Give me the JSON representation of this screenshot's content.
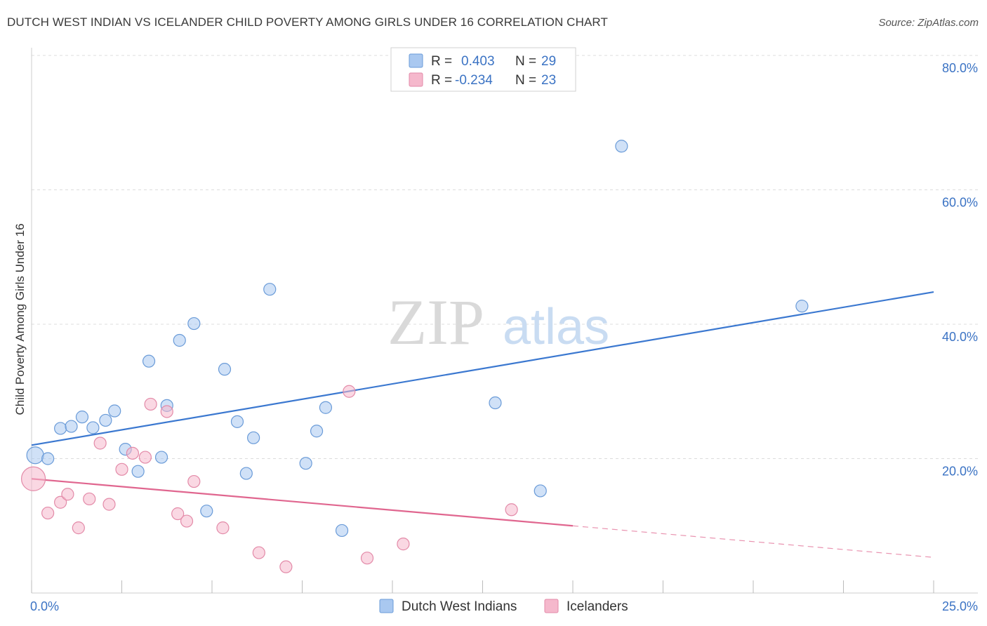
{
  "title": "DUTCH WEST INDIAN VS ICELANDER CHILD POVERTY AMONG GIRLS UNDER 16 CORRELATION CHART",
  "source": "Source: ZipAtlas.com",
  "watermark": {
    "zip": "ZIP",
    "atlas": "atlas"
  },
  "legend": {
    "rows": [
      {
        "r_label": "R =",
        "r_value": "0.403",
        "n_label": "N =",
        "n_value": "29",
        "color": "#a9c8f0"
      },
      {
        "r_label": "R =",
        "r_value": "-0.234",
        "n_label": "N =",
        "n_value": "23",
        "color": "#f5b8cc"
      }
    ]
  },
  "bottom_legend": [
    {
      "label": "Dutch West Indians",
      "color": "#a9c8f0"
    },
    {
      "label": "Icelanders",
      "color": "#f5b8cc"
    }
  ],
  "chart_data": {
    "type": "scatter",
    "ylabel": "Child Poverty Among Girls Under 16",
    "xlim": [
      0,
      25
    ],
    "ylim": [
      0,
      80
    ],
    "y_tick_labels": [
      "80.0%",
      "60.0%",
      "40.0%",
      "20.0%"
    ],
    "y_ticks": [
      80,
      60,
      40,
      20
    ],
    "x_tick_labels": [
      "0.0%",
      "25.0%"
    ],
    "x_ticks": [
      0,
      25
    ],
    "grid": true,
    "series": [
      {
        "name": "Dutch West Indians",
        "color": "#a9c8f0",
        "stroke": "#6a9bd8",
        "trend_color": "#3b78d0",
        "trend": {
          "x": [
            0,
            25
          ],
          "y": [
            22.0,
            44.8
          ]
        },
        "points": [
          [
            0.1,
            20.5
          ],
          [
            0.45,
            20.0
          ],
          [
            0.8,
            24.5
          ],
          [
            1.1,
            24.8
          ],
          [
            1.4,
            26.2
          ],
          [
            1.7,
            24.6
          ],
          [
            2.05,
            25.7
          ],
          [
            2.3,
            27.1
          ],
          [
            2.6,
            21.4
          ],
          [
            2.95,
            18.1
          ],
          [
            3.25,
            34.5
          ],
          [
            3.6,
            20.2
          ],
          [
            3.75,
            27.9
          ],
          [
            4.1,
            37.6
          ],
          [
            4.5,
            40.1
          ],
          [
            4.85,
            12.2
          ],
          [
            5.35,
            33.3
          ],
          [
            5.7,
            25.5
          ],
          [
            5.95,
            17.8
          ],
          [
            6.15,
            23.1
          ],
          [
            6.6,
            45.2
          ],
          [
            7.6,
            19.3
          ],
          [
            7.9,
            24.1
          ],
          [
            8.15,
            27.6
          ],
          [
            8.6,
            9.3
          ],
          [
            12.85,
            28.3
          ],
          [
            14.1,
            15.2
          ],
          [
            16.35,
            66.5
          ],
          [
            21.35,
            42.7
          ]
        ]
      },
      {
        "name": "Icelanders",
        "color": "#f5b8cc",
        "stroke": "#e38aa8",
        "trend_color": "#e0668f",
        "trend": {
          "x": [
            0,
            15
          ],
          "y": [
            17.0,
            10.0
          ]
        },
        "trend_dashed": {
          "x": [
            15,
            25
          ],
          "y": [
            10.0,
            5.3
          ]
        },
        "points": [
          [
            0.05,
            17.0
          ],
          [
            0.45,
            11.9
          ],
          [
            0.8,
            13.5
          ],
          [
            1.0,
            14.7
          ],
          [
            1.3,
            9.7
          ],
          [
            1.6,
            14.0
          ],
          [
            1.9,
            22.3
          ],
          [
            2.15,
            13.2
          ],
          [
            2.5,
            18.4
          ],
          [
            2.8,
            20.8
          ],
          [
            3.15,
            20.2
          ],
          [
            3.3,
            28.1
          ],
          [
            3.75,
            27.0
          ],
          [
            4.05,
            11.8
          ],
          [
            4.3,
            10.7
          ],
          [
            4.5,
            16.6
          ],
          [
            5.3,
            9.7
          ],
          [
            6.3,
            6.0
          ],
          [
            7.05,
            3.9
          ],
          [
            8.8,
            30.0
          ],
          [
            9.3,
            5.2
          ],
          [
            10.3,
            7.3
          ],
          [
            13.3,
            12.4
          ]
        ]
      }
    ]
  }
}
